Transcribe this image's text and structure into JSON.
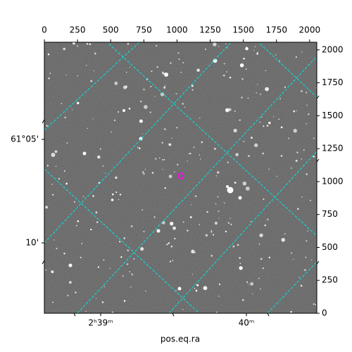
{
  "chart_data": {
    "type": "image",
    "xlabel": "pos.eq.ra",
    "xlim": [
      0,
      2054
    ],
    "ylim": [
      0,
      2058
    ],
    "xticks": [
      0,
      250,
      500,
      750,
      1000,
      1250,
      1500,
      1750,
      2000
    ],
    "yticks": [
      0,
      250,
      500,
      750,
      1000,
      1250,
      1500,
      1750,
      2000
    ],
    "ra_tick_labels": [
      "2ʰ39ᵐ",
      "40ᵐ"
    ],
    "dec_tick_labels": [
      "61°05'",
      "10'"
    ],
    "grid_color": "#00e5e5",
    "marker": {
      "x": 1029,
      "y": 1043,
      "color": "#ff00ff"
    }
  }
}
